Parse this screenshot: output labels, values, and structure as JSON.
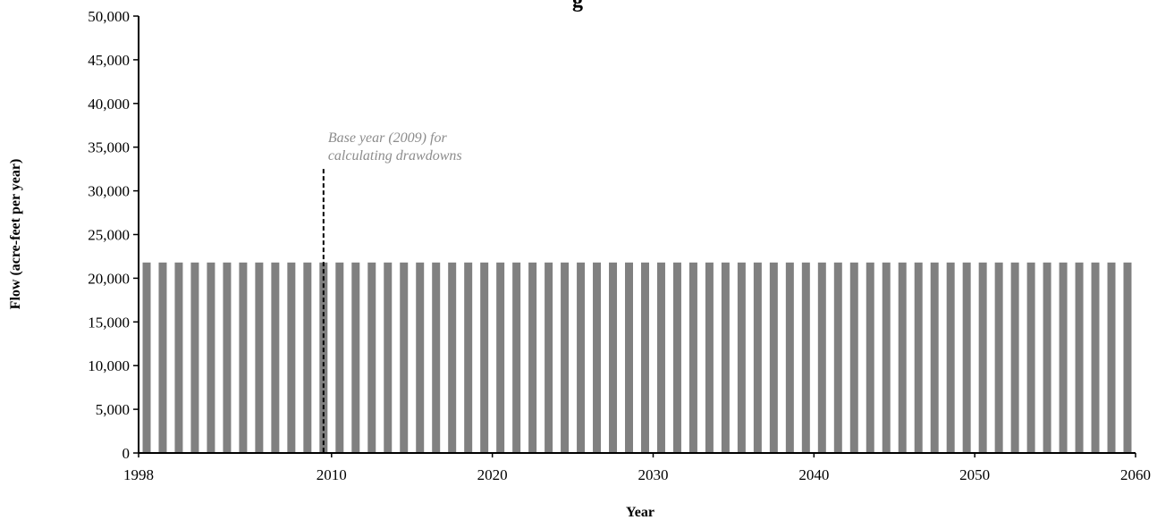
{
  "chart_data": {
    "type": "bar",
    "title": "g",
    "xlabel": "Year",
    "ylabel": "Flow (acre-feet per year)",
    "xlim": [
      1998,
      2060
    ],
    "ylim": [
      0,
      50000
    ],
    "x_ticks": [
      1998,
      2010,
      2020,
      2030,
      2040,
      2050,
      2060
    ],
    "y_ticks": [
      0,
      5000,
      10000,
      15000,
      20000,
      25000,
      30000,
      35000,
      40000,
      45000,
      50000
    ],
    "y_tick_labels": [
      "0",
      "5,000",
      "10,000",
      "15,000",
      "20,000",
      "25,000",
      "30,000",
      "35,000",
      "40,000",
      "45,000",
      "50,000"
    ],
    "x_tick_labels": [
      "1998",
      "2010",
      "2020",
      "2030",
      "2040",
      "2050",
      "2060"
    ],
    "bar_color": "#808080",
    "grid": false,
    "series": [
      {
        "x": [
          1999,
          2000,
          2001,
          2002,
          2003,
          2004,
          2005,
          2006,
          2007,
          2008,
          2009,
          2010,
          2011,
          2012,
          2013,
          2014,
          2015,
          2016,
          2017,
          2018,
          2019,
          2020,
          2021,
          2022,
          2023,
          2024,
          2025,
          2026,
          2027,
          2028,
          2029,
          2030,
          2031,
          2032,
          2033,
          2034,
          2035,
          2036,
          2037,
          2038,
          2039,
          2040,
          2041,
          2042,
          2043,
          2044,
          2045,
          2046,
          2047,
          2048,
          2049,
          2050,
          2051,
          2052,
          2053,
          2054,
          2055,
          2056,
          2057,
          2058,
          2059,
          2060
        ],
        "values": [
          21800,
          21800,
          21800,
          21800,
          21800,
          21800,
          21800,
          21800,
          21800,
          21800,
          21800,
          21800,
          21800,
          21800,
          21800,
          21800,
          21800,
          21800,
          21800,
          21800,
          21800,
          21800,
          21800,
          21800,
          21800,
          21800,
          21800,
          21800,
          21800,
          21800,
          21800,
          21800,
          21800,
          21800,
          21800,
          21800,
          21800,
          21800,
          21800,
          21800,
          21800,
          21800,
          21800,
          21800,
          21800,
          21800,
          21800,
          21800,
          21800,
          21800,
          21800,
          21800,
          21800,
          21800,
          21800,
          21800,
          21800,
          21800,
          21800,
          21800,
          21800,
          21800
        ]
      }
    ],
    "reference_line": {
      "x": 2009.5,
      "y_top": 32500,
      "style": "dashed",
      "label_line1": "Base year (2009) for",
      "label_line2": "calculating drawdowns"
    }
  }
}
